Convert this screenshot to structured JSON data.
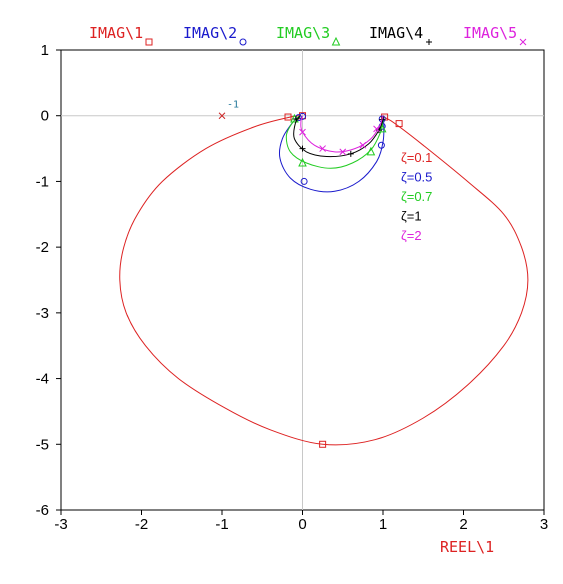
{
  "chart_data": {
    "type": "line",
    "title": "",
    "xlabel": "REEL\\1",
    "ylabel": "",
    "xlim": [
      -3,
      3
    ],
    "ylim": [
      -6,
      1
    ],
    "x_ticks": [
      "-3",
      "-2",
      "-1",
      "0",
      "1",
      "2",
      "3"
    ],
    "y_ticks": [
      "1",
      "0",
      "-1",
      "-2",
      "-3",
      "-4",
      "-5",
      "-6"
    ],
    "grid": false,
    "axes_lines_through_origin": true,
    "legend_placement": "top",
    "critical_point": {
      "x": -1,
      "y": 0,
      "label": "-1",
      "color": "#cc2222"
    },
    "series": [
      {
        "name": "IMAG\\1",
        "color": "#dd2222",
        "marker": "square",
        "zeta_label": "ζ=0.1",
        "points": [
          [
            -0.02,
            0.0
          ],
          [
            -0.15,
            -0.02
          ],
          [
            -0.6,
            -0.17
          ],
          [
            -1.2,
            -0.5
          ],
          [
            -1.74,
            -1.0
          ],
          [
            -2.05,
            -1.5
          ],
          [
            -2.22,
            -2.0
          ],
          [
            -2.27,
            -2.5
          ],
          [
            -2.19,
            -3.0
          ],
          [
            -1.95,
            -3.5
          ],
          [
            -1.54,
            -4.0
          ],
          [
            -0.96,
            -4.45
          ],
          [
            -0.4,
            -4.78
          ],
          [
            0.25,
            -5.0
          ],
          [
            0.9,
            -4.93
          ],
          [
            1.5,
            -4.6
          ],
          [
            2.05,
            -4.1
          ],
          [
            2.5,
            -3.5
          ],
          [
            2.72,
            -3.0
          ],
          [
            2.8,
            -2.5
          ],
          [
            2.72,
            -2.0
          ],
          [
            2.5,
            -1.5
          ],
          [
            2.05,
            -1.0
          ],
          [
            1.5,
            -0.45
          ],
          [
            1.15,
            -0.12
          ],
          [
            1.03,
            -0.03
          ],
          [
            1.0,
            0.0
          ]
        ],
        "marker_points": [
          [
            -0.18,
            -0.02
          ],
          [
            0.25,
            -5.0
          ],
          [
            1.2,
            -0.12
          ],
          [
            1.02,
            -0.02
          ],
          [
            0.0,
            0.0
          ]
        ]
      },
      {
        "name": "IMAG\\2",
        "color": "#1a1acc",
        "marker": "circle",
        "zeta_label": "ζ=0.5",
        "points": [
          [
            -0.03,
            0.0
          ],
          [
            -0.12,
            -0.1
          ],
          [
            -0.25,
            -0.35
          ],
          [
            -0.28,
            -0.65
          ],
          [
            -0.15,
            -0.95
          ],
          [
            0.1,
            -1.12
          ],
          [
            0.4,
            -1.15
          ],
          [
            0.7,
            -1.0
          ],
          [
            0.92,
            -0.7
          ],
          [
            1.0,
            -0.4
          ],
          [
            1.01,
            -0.15
          ],
          [
            1.0,
            0.0
          ]
        ],
        "marker_points": [
          [
            0.0,
            -0.01
          ],
          [
            -0.05,
            -0.03
          ],
          [
            0.02,
            -1.0
          ],
          [
            0.98,
            -0.45
          ],
          [
            0.99,
            -0.16
          ],
          [
            0.99,
            -0.05
          ]
        ]
      },
      {
        "name": "IMAG\\3",
        "color": "#22cc22",
        "marker": "triangle",
        "zeta_label": "ζ=0.7",
        "points": [
          [
            -0.03,
            0.0
          ],
          [
            -0.12,
            -0.1
          ],
          [
            -0.2,
            -0.3
          ],
          [
            -0.15,
            -0.55
          ],
          [
            0.05,
            -0.72
          ],
          [
            0.35,
            -0.8
          ],
          [
            0.62,
            -0.72
          ],
          [
            0.85,
            -0.52
          ],
          [
            0.97,
            -0.25
          ],
          [
            1.0,
            -0.08
          ],
          [
            1.0,
            0.0
          ]
        ],
        "marker_points": [
          [
            -0.1,
            -0.05
          ],
          [
            0.0,
            -0.72
          ],
          [
            0.85,
            -0.55
          ],
          [
            0.99,
            -0.2
          ]
        ]
      },
      {
        "name": "IMAG\\4",
        "color": "#000000",
        "marker": "plus",
        "zeta_label": "ζ=1",
        "points": [
          [
            -0.03,
            0.0
          ],
          [
            -0.09,
            -0.12
          ],
          [
            -0.1,
            -0.35
          ],
          [
            0.05,
            -0.55
          ],
          [
            0.3,
            -0.62
          ],
          [
            0.6,
            -0.58
          ],
          [
            0.82,
            -0.43
          ],
          [
            0.95,
            -0.22
          ],
          [
            1.0,
            -0.06
          ],
          [
            1.0,
            0.0
          ]
        ],
        "marker_points": [
          [
            -0.08,
            -0.05
          ],
          [
            0.0,
            -0.5
          ],
          [
            0.6,
            -0.58
          ],
          [
            0.95,
            -0.22
          ],
          [
            0.99,
            -0.06
          ]
        ]
      },
      {
        "name": "IMAG\\5",
        "color": "#dd22dd",
        "marker": "x",
        "zeta_label": "ζ=2",
        "points": [
          [
            0.0,
            0.0
          ],
          [
            -0.02,
            -0.1
          ],
          [
            0.0,
            -0.25
          ],
          [
            0.15,
            -0.45
          ],
          [
            0.4,
            -0.55
          ],
          [
            0.65,
            -0.5
          ],
          [
            0.85,
            -0.35
          ],
          [
            0.96,
            -0.15
          ],
          [
            1.0,
            0.0
          ]
        ],
        "marker_points": [
          [
            0.0,
            -0.25
          ],
          [
            0.25,
            -0.5
          ],
          [
            0.5,
            -0.55
          ],
          [
            0.75,
            -0.45
          ],
          [
            0.92,
            -0.2
          ]
        ]
      }
    ]
  }
}
